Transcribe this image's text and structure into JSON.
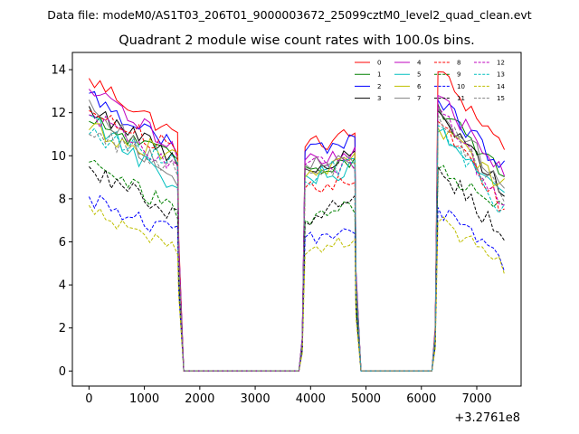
{
  "figure": {
    "suptitle": "Data file: modeM0/AS1T03_206T01_9000003672_25099cztM0_level2_quad_clean.evt"
  },
  "chart_data": {
    "type": "line",
    "title": "Quadrant 2 module wise count rates with 100.0s bins.",
    "xlabel": "",
    "ylabel": "",
    "x_offset_label": "+3.2761e8",
    "xlim": [
      -300,
      7800
    ],
    "ylim": [
      -0.7,
      14.8
    ],
    "x_ticks": [
      0,
      1000,
      2000,
      3000,
      4000,
      5000,
      6000,
      7000
    ],
    "x_tick_labels": [
      "0",
      "1000",
      "2000",
      "3000",
      "4000",
      "5000",
      "6000",
      "7000"
    ],
    "y_ticks": [
      0,
      2,
      4,
      6,
      8,
      10,
      12,
      14
    ],
    "y_tick_labels": [
      "0",
      "2",
      "4",
      "6",
      "8",
      "10",
      "12",
      "14"
    ],
    "grid": false,
    "legend_position": "top-right",
    "bin_width": 100,
    "segments": [
      {
        "start": 0,
        "end": 1550,
        "plateau_end": 1600
      },
      {
        "start": 3900,
        "end": 4750,
        "plateau_end": 4800
      },
      {
        "start": 6300,
        "end": 7450,
        "plateau_end": 7450
      }
    ],
    "series": [
      {
        "name": "0",
        "color": "#ff0000",
        "style": "solid",
        "levels": [
          13.6,
          10.4,
          13.9
        ],
        "end": [
          10.9,
          11.0,
          10.4
        ]
      },
      {
        "name": "1",
        "color": "#008000",
        "style": "solid",
        "levels": [
          11.6,
          9.5,
          12.4
        ],
        "end": [
          9.8,
          9.8,
          8.9
        ]
      },
      {
        "name": "2",
        "color": "#0000ff",
        "style": "solid",
        "levels": [
          12.9,
          10.2,
          12.6
        ],
        "end": [
          10.2,
          10.7,
          9.4
        ]
      },
      {
        "name": "3",
        "color": "#000000",
        "style": "solid",
        "levels": [
          12.3,
          9.4,
          12.1
        ],
        "end": [
          9.8,
          10.0,
          8.4
        ]
      },
      {
        "name": "4",
        "color": "#bf00bf",
        "style": "solid",
        "levels": [
          13.1,
          9.8,
          12.8
        ],
        "end": [
          10.3,
          10.1,
          9.1
        ]
      },
      {
        "name": "5",
        "color": "#00bfbf",
        "style": "solid",
        "levels": [
          11.9,
          9.1,
          11.1
        ],
        "end": [
          8.2,
          9.3,
          8.1
        ]
      },
      {
        "name": "6",
        "color": "#bfbf00",
        "style": "solid",
        "levels": [
          11.2,
          9.0,
          11.3
        ],
        "end": [
          10.0,
          9.7,
          8.5
        ]
      },
      {
        "name": "7",
        "color": "#808080",
        "style": "solid",
        "levels": [
          12.6,
          9.6,
          12.2
        ],
        "end": [
          8.6,
          9.8,
          8.7
        ]
      },
      {
        "name": "8",
        "color": "#ff0000",
        "style": "dashed",
        "levels": [
          12.1,
          8.5,
          11.6
        ],
        "end": [
          10.2,
          9.1,
          7.5
        ]
      },
      {
        "name": "9",
        "color": "#008000",
        "style": "dashed",
        "levels": [
          9.7,
          7.0,
          9.4
        ],
        "end": [
          7.4,
          7.6,
          7.4
        ]
      },
      {
        "name": "10",
        "color": "#0000ff",
        "style": "dashed",
        "levels": [
          8.1,
          6.2,
          7.6
        ],
        "end": [
          6.3,
          6.6,
          5.0
        ]
      },
      {
        "name": "11",
        "color": "#000000",
        "style": "dashed",
        "levels": [
          9.5,
          6.9,
          9.5
        ],
        "end": [
          7.2,
          8.3,
          6.2
        ]
      },
      {
        "name": "12",
        "color": "#bf00bf",
        "style": "dashed",
        "levels": [
          11.9,
          9.6,
          12.3
        ],
        "end": [
          9.4,
          9.4,
          7.6
        ]
      },
      {
        "name": "13",
        "color": "#00bfbf",
        "style": "dashed",
        "levels": [
          11.0,
          8.8,
          11.4
        ],
        "end": [
          9.7,
          9.9,
          7.4
        ]
      },
      {
        "name": "14",
        "color": "#bfbf00",
        "style": "dashed",
        "levels": [
          7.7,
          5.4,
          6.9
        ],
        "end": [
          5.6,
          6.1,
          4.8
        ]
      },
      {
        "name": "15",
        "color": "#808080",
        "style": "dashed",
        "levels": [
          11.0,
          9.5,
          11.9
        ],
        "end": [
          9.4,
          9.5,
          7.9
        ]
      }
    ]
  }
}
